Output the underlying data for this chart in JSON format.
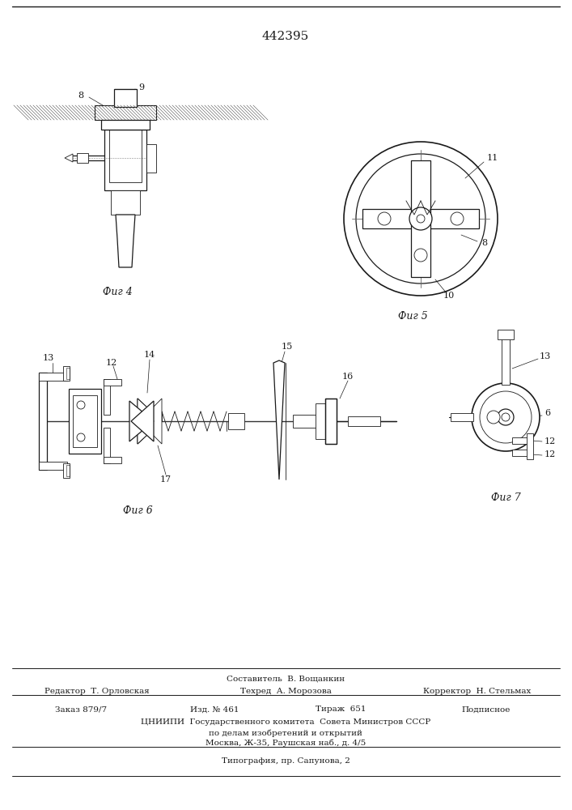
{
  "patent_number": "442395",
  "background_color": "#ffffff",
  "line_color": "#1a1a1a",
  "fig_labels": [
    "Фиг 4",
    "Фиг 5",
    "Фиг 6",
    "Фиг 7"
  ],
  "footer": {
    "composer": "Составитель  В. Вощанкин",
    "editor": "Редактор  Т. Орловская",
    "techred": "Техред  А. Морозова",
    "corrector": "Корректор  Н. Стельмах",
    "order": "Заказ 879/7",
    "izd": "Изд. № 461",
    "tirazh": "Тираж  651",
    "podpisnoe": "Подписное",
    "cniipи": "ЦНИИПИ  Государственного комитета  Совета Министров СССР",
    "po_delam": "по делам изобретений и открытий",
    "moscow": "Москва, Ж-35, Раушская наб., д. 4/5",
    "tipografia": "Типография, пр. Сапунова, 2"
  }
}
